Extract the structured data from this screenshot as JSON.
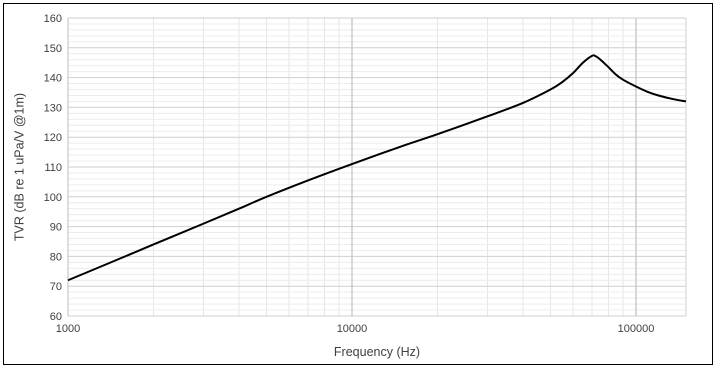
{
  "chart_data": {
    "type": "line",
    "title": "",
    "xlabel": "Frequency (Hz)",
    "ylabel": "TVR (dB re 1 uPa/V  @1m)",
    "x_scale": "log",
    "xlim": [
      1000,
      150000
    ],
    "ylim": [
      60,
      160
    ],
    "x_major_ticks": [
      1000,
      10000,
      100000
    ],
    "x_tick_labels": [
      "1000",
      "10000",
      "100000"
    ],
    "y_ticks": [
      60,
      70,
      80,
      90,
      100,
      110,
      120,
      130,
      140,
      150,
      160
    ],
    "y_tick_labels": [
      "60",
      "70",
      "80",
      "90",
      "100",
      "110",
      "120",
      "130",
      "140",
      "150",
      "160"
    ],
    "grid": true,
    "line_color": "#000000",
    "series": [
      {
        "x": [
          1000,
          1500,
          2000,
          3000,
          4000,
          5000,
          7000,
          10000,
          15000,
          20000,
          30000,
          40000,
          50000,
          55000,
          60000,
          65000,
          70000,
          72000,
          75000,
          80000,
          85000,
          90000,
          100000,
          110000,
          120000,
          135000,
          150000
        ],
        "y": [
          72,
          79,
          84,
          91,
          96,
          100,
          105.5,
          111,
          117,
          121,
          127,
          131.5,
          136,
          138.5,
          141.5,
          145,
          147.3,
          147.2,
          146,
          143.5,
          141,
          139.3,
          137,
          135.2,
          134,
          132.8,
          132
        ]
      }
    ]
  }
}
